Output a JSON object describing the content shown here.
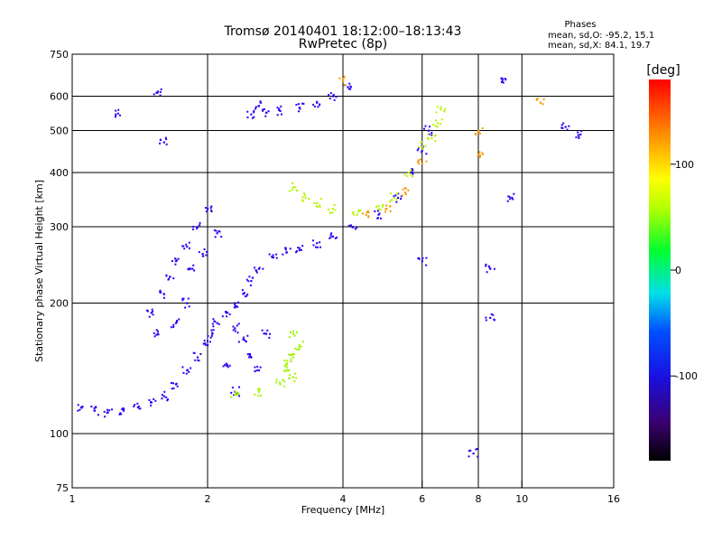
{
  "chart_data": {
    "type": "scatter",
    "title": "Tromsø 20140401 18:12:00–18:13:43",
    "subtitle": "RwPretec (8p)",
    "xlabel": "Frequency [MHz]",
    "ylabel": "Stationary phase Virtual Height [km]",
    "x_scale": "log",
    "y_scale": "log",
    "xlim": [
      1,
      16
    ],
    "ylim": [
      75,
      750
    ],
    "x_ticks": [
      1,
      2,
      4,
      6,
      8,
      10,
      16
    ],
    "x_tick_labels": [
      "1",
      "2",
      "4",
      "6",
      "8",
      "10",
      "16"
    ],
    "y_ticks": [
      75,
      100,
      200,
      300,
      400,
      500,
      600,
      750
    ],
    "y_tick_labels": [
      "75",
      "100",
      "200",
      "300",
      "400",
      "500",
      "600",
      "750"
    ],
    "x_gridlines": [
      2,
      4,
      6,
      8,
      10
    ],
    "y_gridlines": [
      100,
      200,
      300,
      400,
      500,
      600
    ],
    "grid": true,
    "phase_stats": {
      "heading": "Phases",
      "o_line": "mean, sd,O:  -95.2, 15.1",
      "x_line": "mean, sd,X:  84.1, 19.7"
    },
    "colorbar": {
      "label": "[deg]",
      "range": [
        -180,
        180
      ],
      "ticks": [
        100,
        0,
        -100
      ],
      "tick_labels": [
        "100",
        "0",
        "-100"
      ]
    },
    "series": [
      {
        "color_deg": -105,
        "points": [
          [
            1.05,
            115
          ],
          [
            1.12,
            113
          ],
          [
            1.2,
            112
          ],
          [
            1.3,
            113
          ],
          [
            1.4,
            115
          ],
          [
            1.5,
            118
          ],
          [
            1.6,
            122
          ],
          [
            1.7,
            130
          ],
          [
            1.8,
            140
          ],
          [
            1.9,
            150
          ],
          [
            2.0,
            160
          ],
          [
            2.05,
            170
          ],
          [
            2.1,
            180
          ],
          [
            2.2,
            190
          ],
          [
            2.3,
            200
          ],
          [
            2.4,
            210
          ],
          [
            2.5,
            225
          ],
          [
            2.6,
            240
          ],
          [
            2.8,
            255
          ],
          [
            3.0,
            262
          ],
          [
            3.2,
            265
          ],
          [
            3.5,
            275
          ],
          [
            3.8,
            285
          ],
          [
            4.2,
            300
          ],
          [
            4.8,
            320
          ],
          [
            5.3,
            350
          ],
          [
            5.7,
            400
          ],
          [
            6.0,
            450
          ],
          [
            6.2,
            500
          ]
        ]
      },
      {
        "color_deg": -100,
        "points": [
          [
            1.5,
            190
          ],
          [
            1.6,
            210
          ],
          [
            1.65,
            230
          ],
          [
            1.7,
            250
          ],
          [
            1.8,
            270
          ],
          [
            1.9,
            300
          ],
          [
            2.0,
            330
          ],
          [
            1.55,
            170
          ],
          [
            1.7,
            180
          ],
          [
            1.8,
            200
          ],
          [
            1.85,
            240
          ],
          [
            1.95,
            260
          ],
          [
            2.1,
            290
          ],
          [
            2.3,
            175
          ],
          [
            2.4,
            165
          ],
          [
            2.5,
            150
          ],
          [
            2.6,
            140
          ],
          [
            2.7,
            170
          ],
          [
            2.2,
            145
          ],
          [
            2.3,
            125
          ]
        ]
      },
      {
        "color_deg": -98,
        "points": [
          [
            2.5,
            545
          ],
          [
            2.6,
            570
          ],
          [
            2.7,
            550
          ],
          [
            2.9,
            555
          ],
          [
            3.2,
            565
          ],
          [
            3.5,
            580
          ],
          [
            3.8,
            600
          ],
          [
            4.1,
            630
          ]
        ]
      },
      {
        "color_deg": 95,
        "points": [
          [
            2.3,
            123
          ],
          [
            2.6,
            125
          ],
          [
            2.9,
            130
          ],
          [
            3.0,
            140
          ],
          [
            3.1,
            150
          ],
          [
            3.2,
            160
          ],
          [
            3.1,
            170
          ],
          [
            3.0,
            145
          ],
          [
            3.1,
            135
          ]
        ]
      },
      {
        "color_deg": 100,
        "points": [
          [
            3.1,
            370
          ],
          [
            3.3,
            350
          ],
          [
            3.5,
            340
          ],
          [
            3.8,
            330
          ],
          [
            4.3,
            320
          ],
          [
            4.8,
            335
          ],
          [
            5.2,
            350
          ],
          [
            5.6,
            400
          ],
          [
            6.0,
            460
          ],
          [
            6.3,
            480
          ],
          [
            6.5,
            520
          ],
          [
            6.6,
            560
          ]
        ]
      },
      {
        "color_deg": 140,
        "points": [
          [
            4.5,
            320
          ],
          [
            5.0,
            330
          ],
          [
            5.5,
            360
          ],
          [
            6.0,
            420
          ],
          [
            8.0,
            500
          ],
          [
            8.0,
            440
          ],
          [
            11.0,
            580
          ],
          [
            4.0,
            650
          ]
        ]
      },
      {
        "color_deg": -90,
        "points": [
          [
            1.25,
            545
          ],
          [
            1.55,
            615
          ],
          [
            1.6,
            470
          ],
          [
            9.0,
            660
          ],
          [
            12.5,
            510
          ],
          [
            13.5,
            490
          ],
          [
            8.5,
            240
          ],
          [
            9.5,
            350
          ],
          [
            6.0,
            250
          ],
          [
            8.5,
            185
          ],
          [
            7.8,
            90
          ]
        ]
      }
    ]
  }
}
